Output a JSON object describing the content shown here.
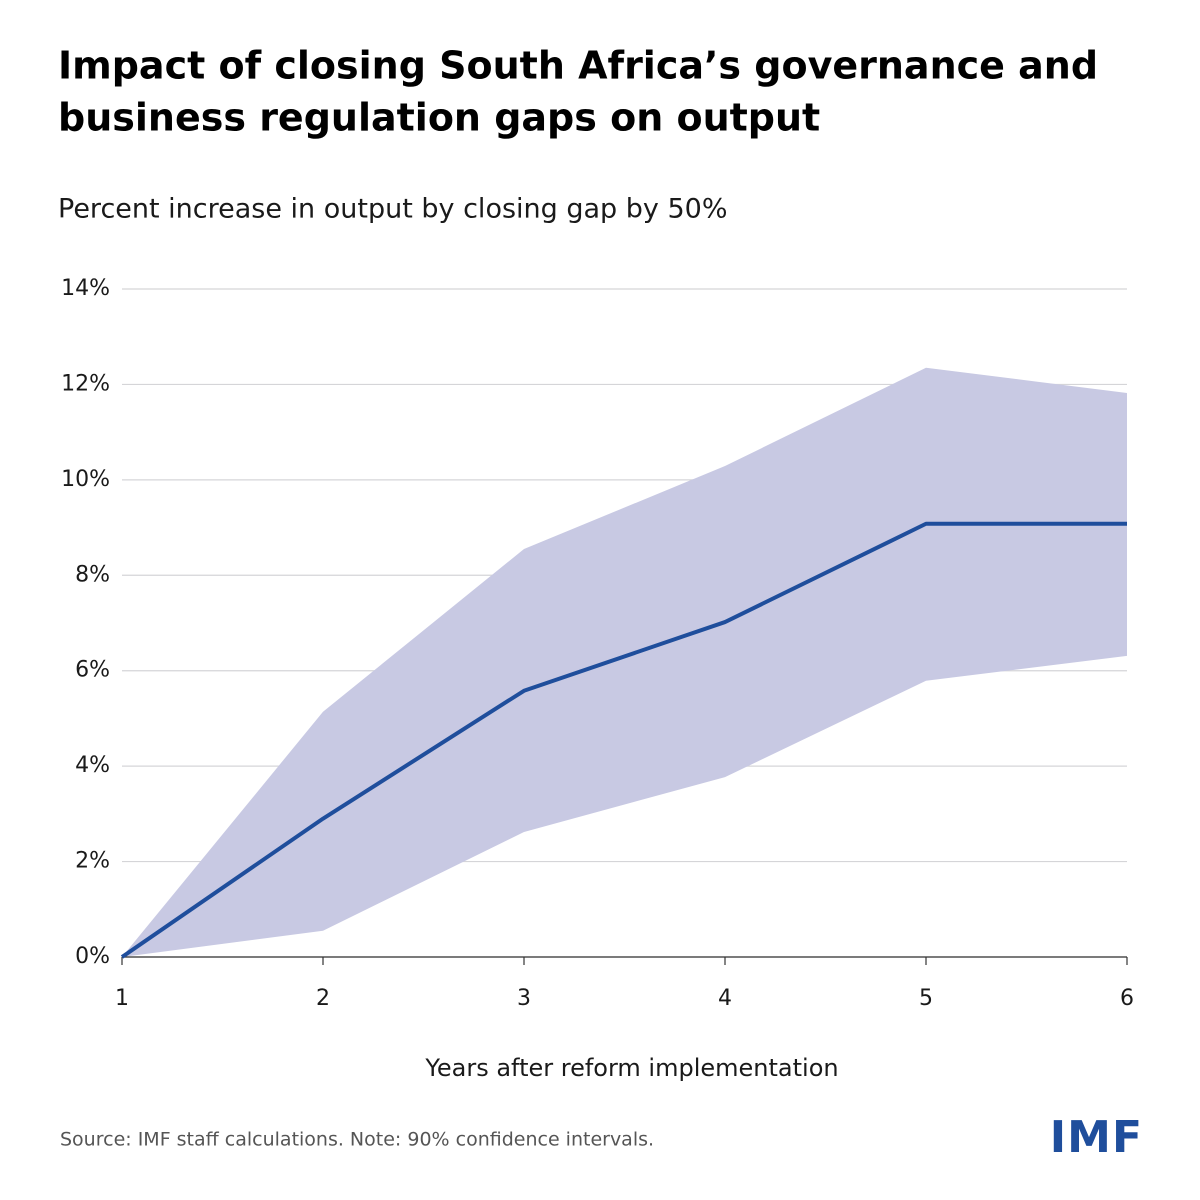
{
  "chart_data": {
    "type": "line",
    "title_lines": [
      "Impact of closing South Africa’s governance and",
      "business regulation gaps on output"
    ],
    "subtitle": "Percent increase in output by closing gap by 50%",
    "x_label": "Years after reform implementation",
    "source": "Source: IMF staff calculations. Note: 90% confidence intervals.",
    "logo": "IMF",
    "x": [
      1,
      2,
      3,
      4,
      5,
      6
    ],
    "series": [
      {
        "color": "#1f4e9c",
        "values": [
          0,
          2.9,
          5.58,
          7.02,
          9.08,
          9.08
        ]
      }
    ],
    "band": {
      "color": "#c8c9e3",
      "upper": [
        0,
        5.14,
        8.55,
        10.29,
        12.35,
        11.82
      ],
      "lower": [
        0,
        0.55,
        2.62,
        3.77,
        5.79,
        6.31
      ]
    },
    "xlim": [
      1,
      6
    ],
    "xticks": [
      1,
      2,
      3,
      4,
      5,
      6
    ],
    "ylim": [
      0,
      14
    ],
    "yticks": [
      {
        "value": 0,
        "label": "0%"
      },
      {
        "value": 2,
        "label": "2%"
      },
      {
        "value": 4,
        "label": "4%"
      },
      {
        "value": 6,
        "label": "6%"
      },
      {
        "value": 8,
        "label": "8%"
      },
      {
        "value": 10,
        "label": "10%"
      },
      {
        "value": 12,
        "label": "12%"
      },
      {
        "value": 14,
        "label": "14%"
      }
    ],
    "grid": true
  }
}
